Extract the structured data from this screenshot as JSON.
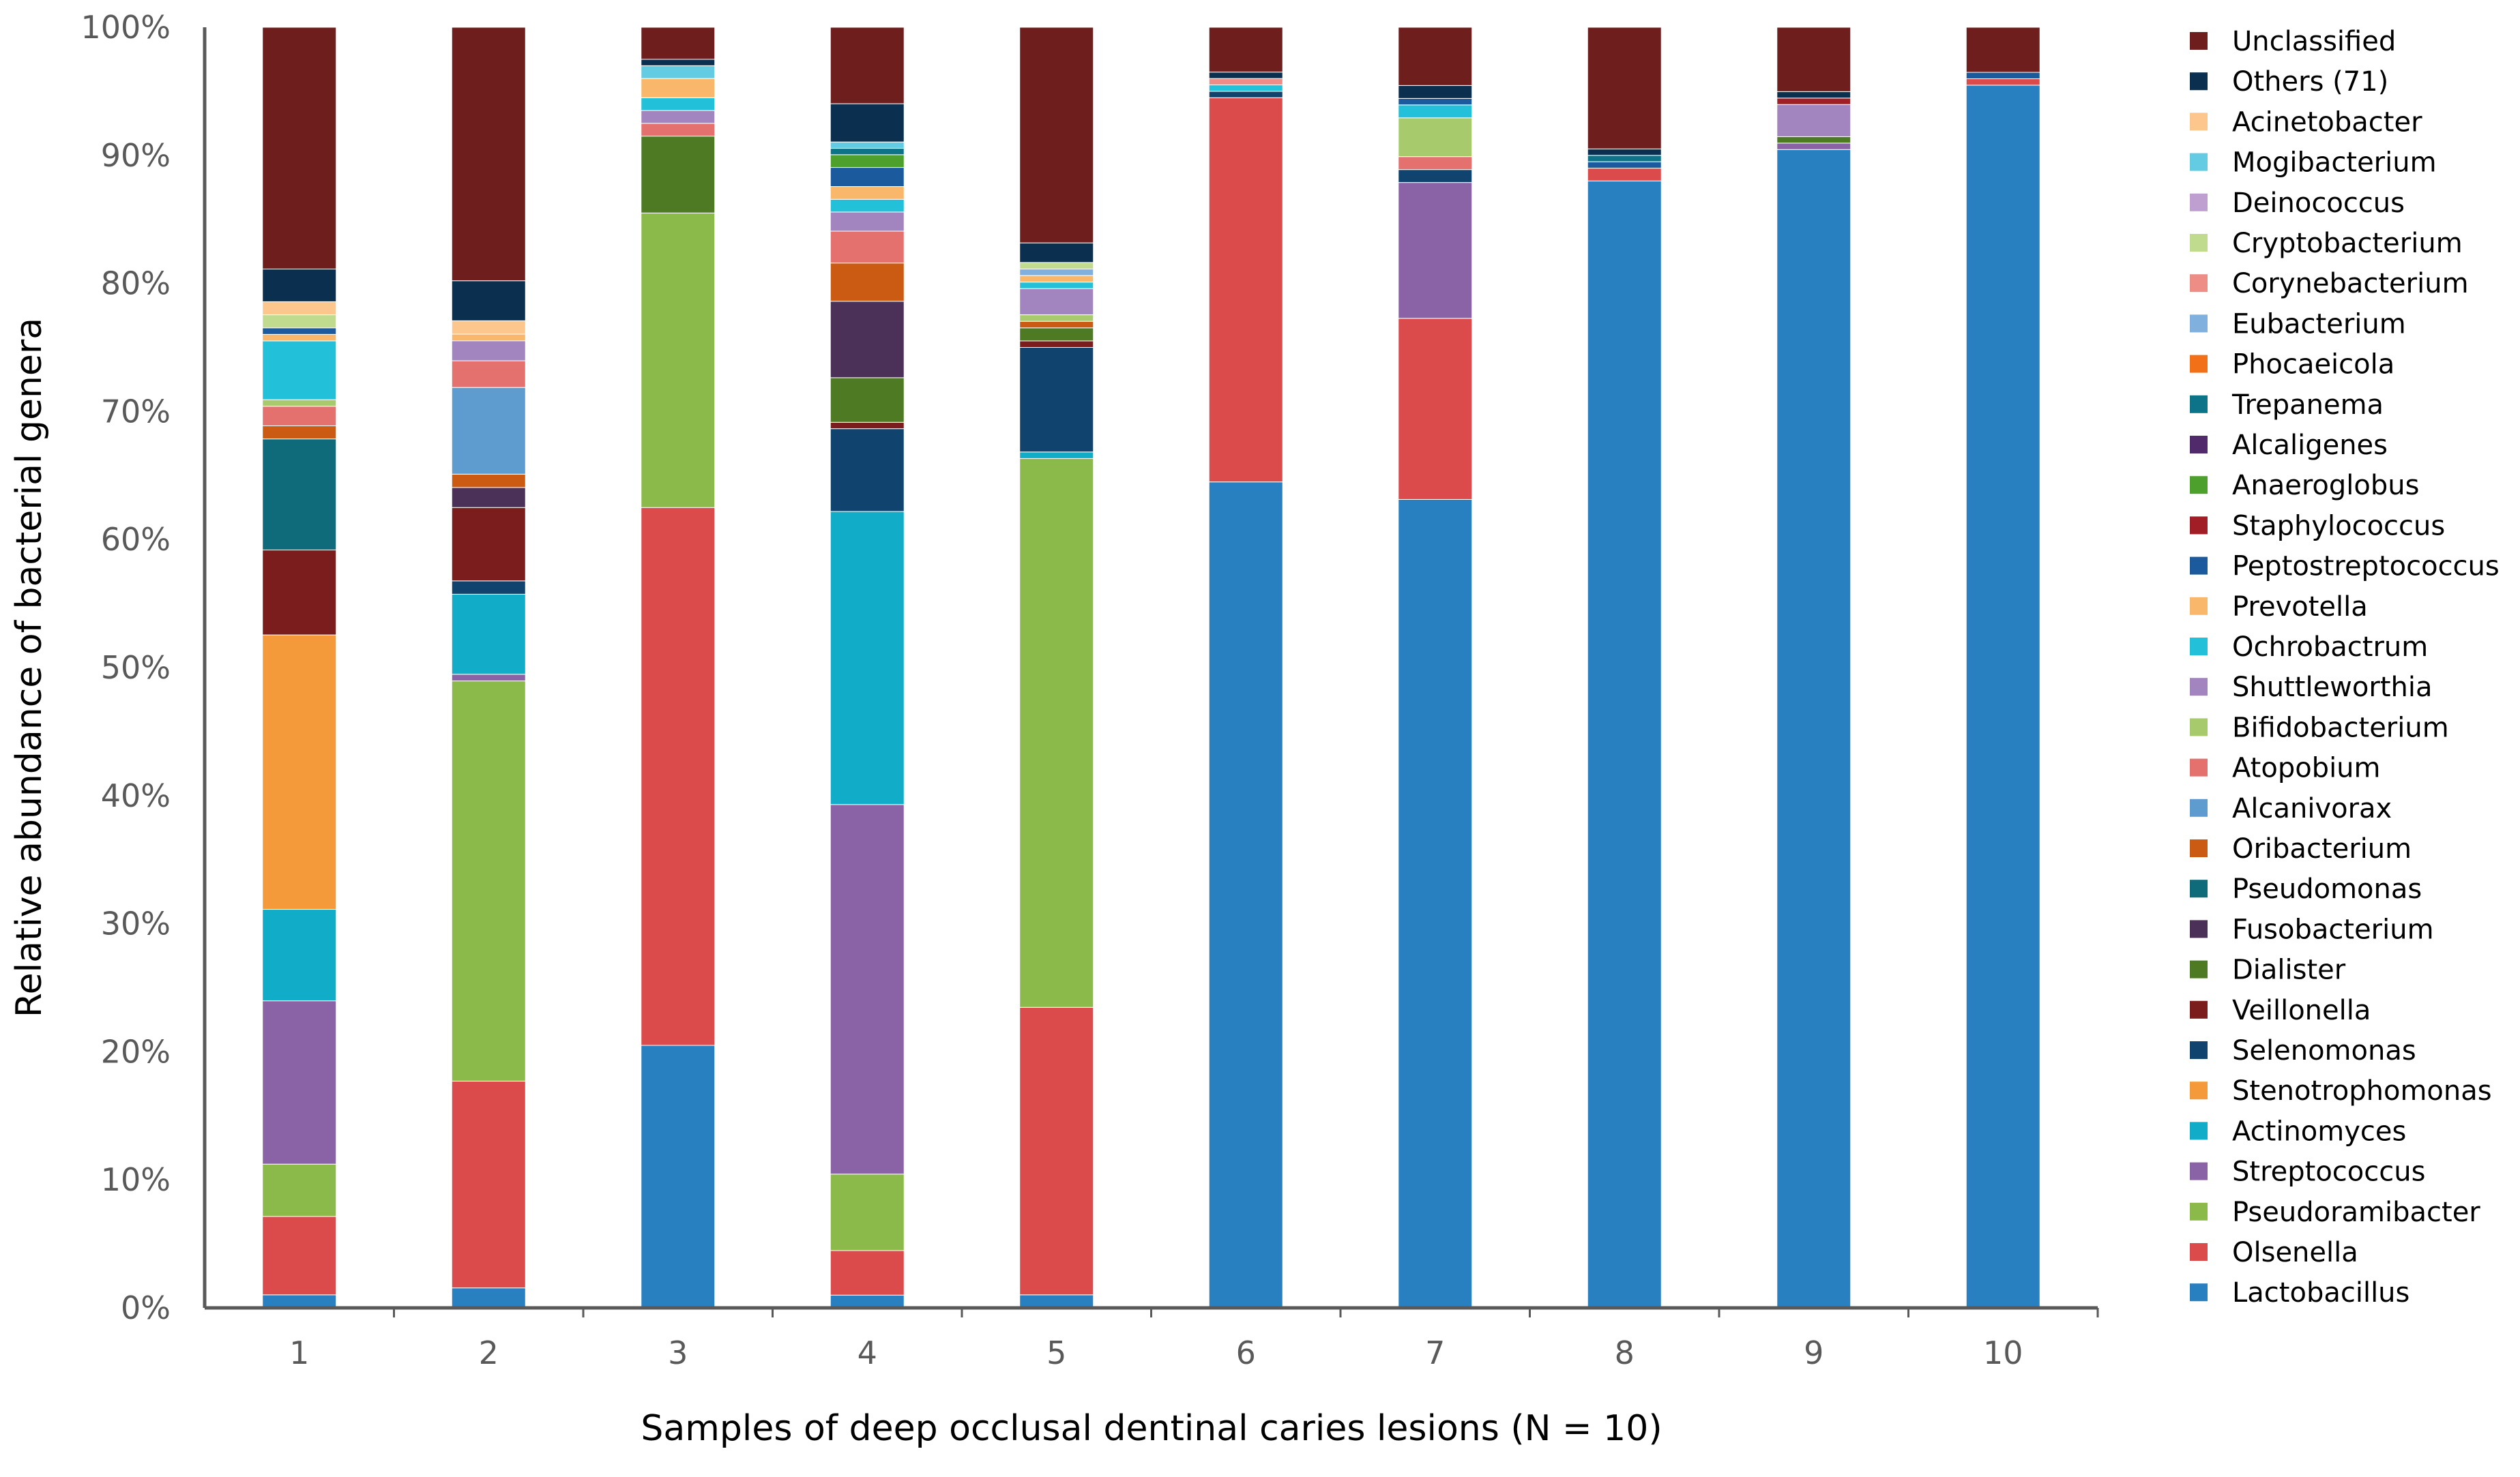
{
  "chart_data": {
    "type": "bar",
    "stacked": true,
    "title": "",
    "xlabel": "Samples of deep occlusal dentinal caries lesions (N = 10)",
    "ylabel": "Relative abundance of bacterial genera",
    "ylim": [
      0,
      100
    ],
    "yticks": [
      "0%",
      "10%",
      "20%",
      "30%",
      "40%",
      "50%",
      "60%",
      "70%",
      "80%",
      "90%",
      "100%"
    ],
    "categories": [
      "1",
      "2",
      "3",
      "4",
      "5",
      "6",
      "7",
      "8",
      "9",
      "10"
    ],
    "legend_position": "right",
    "series": [
      {
        "name": "Lactobacillus",
        "color": "#2980C0",
        "values": [
          1,
          1.5,
          20.5,
          1,
          1,
          64.5,
          62.5,
          88,
          90,
          95
        ]
      },
      {
        "name": "Olsenella",
        "color": "#DB4B4B",
        "values": [
          6,
          15.5,
          42,
          3.5,
          22,
          30,
          14,
          1,
          0,
          0.5
        ]
      },
      {
        "name": "Pseudoramibacter",
        "color": "#8BBA4A",
        "values": [
          4,
          30,
          23,
          6,
          42,
          0,
          0,
          0,
          0,
          0
        ]
      },
      {
        "name": "Streptococcus",
        "color": "#8A62A6",
        "values": [
          12.5,
          0.5,
          0,
          29,
          0,
          0,
          10.5,
          0,
          0.5,
          0
        ]
      },
      {
        "name": "Actinomyces",
        "color": "#11ACC8",
        "values": [
          7,
          6,
          0,
          23,
          0.5,
          0,
          0,
          0,
          0,
          0
        ]
      },
      {
        "name": "Stenotrophomonas",
        "color": "#F59A3A",
        "values": [
          21,
          0,
          0,
          0,
          0,
          0,
          0,
          0,
          0,
          0
        ]
      },
      {
        "name": "Selenomonas",
        "color": "#10436E",
        "values": [
          0,
          1,
          0,
          6.5,
          8,
          0.5,
          1,
          0,
          0,
          0
        ]
      },
      {
        "name": "Veillonella",
        "color": "#7B1D1D",
        "values": [
          6.5,
          5.5,
          0,
          0.5,
          0.5,
          0,
          0,
          0,
          0,
          0
        ]
      },
      {
        "name": "Dialister",
        "color": "#4E7A23",
        "values": [
          0,
          0,
          6,
          3.5,
          1,
          0,
          0,
          0,
          0.5,
          0
        ]
      },
      {
        "name": "Fusobacterium",
        "color": "#4B3158",
        "values": [
          0,
          1.5,
          0,
          6,
          0,
          0,
          0,
          0,
          0,
          0
        ]
      },
      {
        "name": "Pseudomonas",
        "color": "#0F6B7A",
        "values": [
          8.5,
          0,
          0,
          0,
          0,
          0,
          0,
          0,
          0,
          0
        ]
      },
      {
        "name": "Oribacterium",
        "color": "#CB5A12",
        "values": [
          1,
          1,
          0,
          3,
          0.5,
          0,
          0,
          0,
          0,
          0
        ]
      },
      {
        "name": "Alcanivorax",
        "color": "#5E9BCF",
        "values": [
          0,
          6.5,
          0,
          0,
          0,
          0,
          0,
          0,
          0,
          0
        ]
      },
      {
        "name": "Atopobium",
        "color": "#E5716F",
        "values": [
          1.5,
          2,
          1,
          2.5,
          0,
          0,
          1,
          0,
          0,
          0
        ]
      },
      {
        "name": "Bifidobacterium",
        "color": "#A7CB6C",
        "values": [
          0.5,
          0,
          0,
          0,
          0.5,
          0,
          3,
          0,
          0,
          0
        ]
      },
      {
        "name": "Shuttleworthia",
        "color": "#A285BE",
        "values": [
          0,
          1.5,
          1,
          1.5,
          2,
          0,
          0,
          0,
          2.5,
          0
        ]
      },
      {
        "name": "Ochrobactrum",
        "color": "#23C1D9",
        "values": [
          4.5,
          0,
          1,
          1,
          0.5,
          0.5,
          1,
          0,
          0,
          0
        ]
      },
      {
        "name": "Prevotella",
        "color": "#F9B76B",
        "values": [
          0.5,
          0.5,
          1.5,
          1,
          0.5,
          0,
          0,
          0,
          0,
          0
        ]
      },
      {
        "name": "Peptostreptococcus",
        "color": "#1B5A9C",
        "values": [
          0.5,
          0,
          0,
          1.5,
          0,
          0,
          0.5,
          0.5,
          0,
          0.5
        ]
      },
      {
        "name": "Staphylococcus",
        "color": "#A11E26",
        "values": [
          0,
          0,
          0,
          0,
          0,
          0,
          0,
          0,
          0.5,
          0
        ]
      },
      {
        "name": "Anaeroglobus",
        "color": "#4EA02C",
        "values": [
          0,
          0,
          0,
          1,
          0,
          0,
          0,
          0,
          0,
          0
        ]
      },
      {
        "name": "Alcaligenes",
        "color": "#502A6A",
        "values": [
          0,
          0,
          0,
          0,
          0,
          0,
          0,
          0,
          0,
          0
        ]
      },
      {
        "name": "Trepanema",
        "color": "#0D7388",
        "values": [
          0,
          0,
          0,
          0.5,
          0,
          0,
          0,
          0.5,
          0,
          0
        ]
      },
      {
        "name": "Phocaeicola",
        "color": "#F27018",
        "values": [
          0,
          0,
          0,
          0,
          0,
          0,
          0,
          0,
          0,
          0
        ]
      },
      {
        "name": "Eubacterium",
        "color": "#7FB0DE",
        "values": [
          0,
          0,
          0,
          0,
          0.5,
          0,
          0,
          0,
          0,
          0
        ]
      },
      {
        "name": "Corynebacterium",
        "color": "#EE8D86",
        "values": [
          0,
          0,
          0,
          0,
          0,
          0.5,
          0,
          0,
          0,
          0
        ]
      },
      {
        "name": "Cryptobacterium",
        "color": "#C0DB8D",
        "values": [
          1,
          0,
          0,
          0,
          0.5,
          0,
          0,
          0,
          0,
          0
        ]
      },
      {
        "name": "Deinococcus",
        "color": "#BE9FD0",
        "values": [
          0,
          0,
          0,
          0,
          0,
          0,
          0,
          0,
          0,
          0
        ]
      },
      {
        "name": "Mogibacterium",
        "color": "#63CCE2",
        "values": [
          0,
          0,
          1,
          0.5,
          0,
          0,
          0,
          0,
          0,
          0
        ]
      },
      {
        "name": "Acinetobacter",
        "color": "#FCC68D",
        "values": [
          1,
          1,
          0,
          0,
          0,
          0,
          0,
          0,
          0,
          0
        ]
      },
      {
        "name": "Others (71)",
        "color": "#0B2F4F",
        "values": [
          2.5,
          3,
          0.5,
          3,
          1.5,
          0.5,
          1,
          0.5,
          0.5,
          0
        ]
      },
      {
        "name": "Unclassified",
        "color": "#6F1E1E",
        "values": [
          18.5,
          19,
          2.5,
          6,
          16.5,
          3.5,
          4.5,
          9.5,
          5,
          3.5
        ]
      }
    ]
  }
}
